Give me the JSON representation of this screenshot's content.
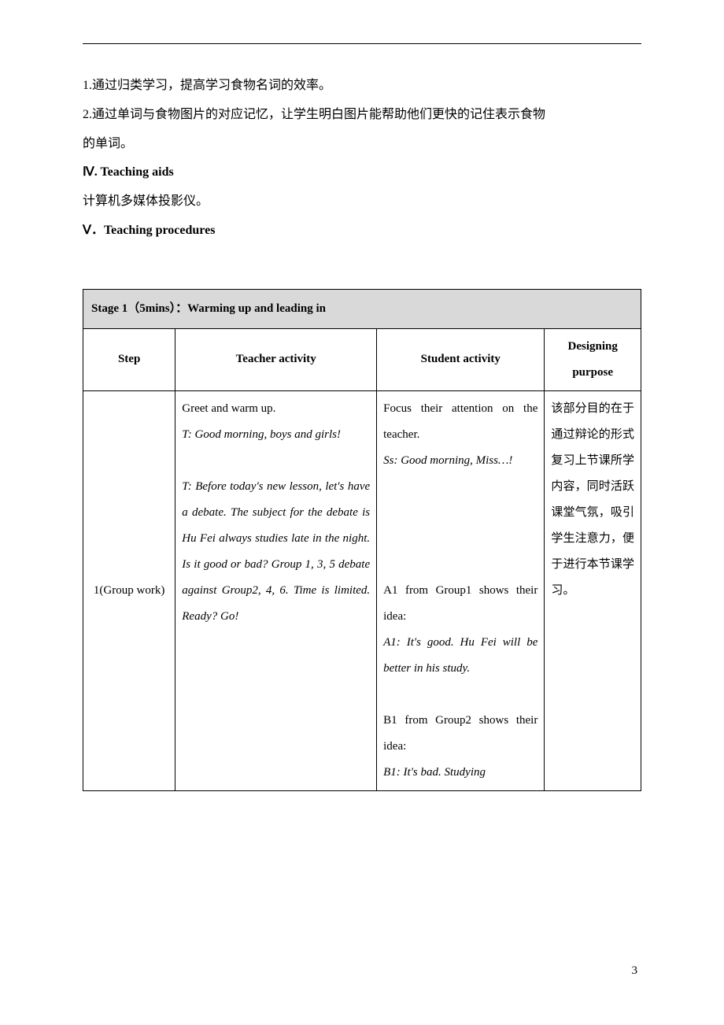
{
  "intro": {
    "line1": "1.通过归类学习，提高学习食物名词的效率。",
    "line2": "2.通过单词与食物图片的对应记忆，让学生明白图片能帮助他们更快的记住表示食物",
    "line3": "的单词。",
    "section4_title": "Ⅳ. Teaching aids",
    "section4_content": "计算机多媒体投影仪。",
    "section5_title": "Ⅴ．Teaching procedures"
  },
  "table": {
    "stage_title": "Stage 1（5mins）：Warming up and leading in",
    "headers": {
      "step": "Step",
      "teacher": "Teacher activity",
      "student": "Student activity",
      "purpose": "Designing purpose"
    },
    "row": {
      "step": "1(Group work)",
      "teacher": {
        "l1": "Greet and warm up.",
        "l2": "T: Good morning, boys and girls!",
        "l3": "T: Before today's new lesson, let's have a debate. The subject for the debate is Hu Fei always studies late in the night. Is it good or bad? Group 1, 3, 5 debate against Group2, 4, 6. Time is limited. Ready? Go!"
      },
      "student": {
        "l1": "Focus their attention on the teacher.",
        "l2": "Ss: Good morning, Miss…!",
        "l3": "A1 from Group1 shows their idea:",
        "l4": "A1: It's good. Hu Fei will be better in his study.",
        "l5": "B1 from Group2 shows their idea:",
        "l6": "B1: It's bad. Studying"
      },
      "purpose": "该部分目的在于通过辩论的形式复习上节课所学内容，同时活跃课堂气氛，吸引学生注意力，便于进行本节课学习。"
    }
  },
  "page_number": "3"
}
